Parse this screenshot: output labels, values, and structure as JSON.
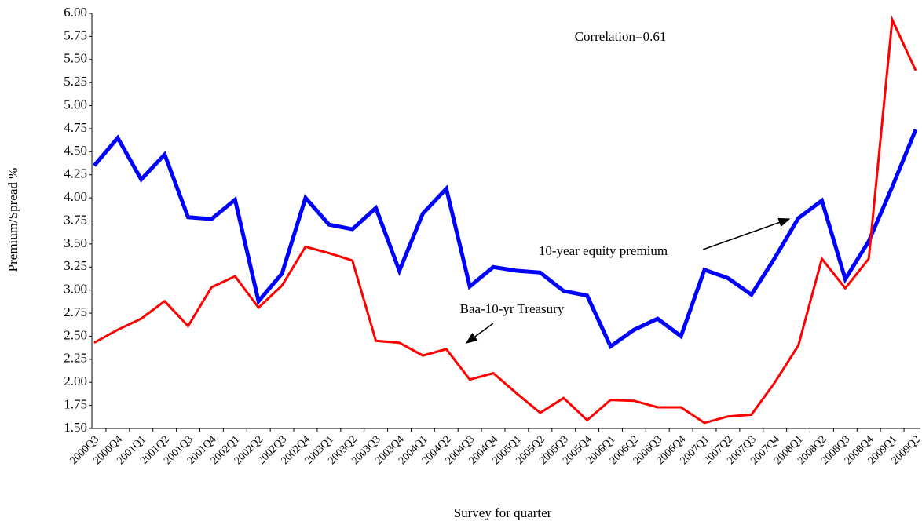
{
  "chart_data": {
    "type": "line",
    "annotation": "Correlation=0.61",
    "y_label": "Premium/Spread %",
    "x_label": "Survey for quarter",
    "categories": [
      "2000Q3",
      "2000Q4",
      "2001Q1",
      "2001Q2",
      "2001Q3",
      "2001Q4",
      "2002Q1",
      "2002Q2",
      "2002Q3",
      "2002Q4",
      "2003Q1",
      "2003Q2",
      "2003Q3",
      "2003Q4",
      "2004Q1",
      "2004Q2",
      "2004Q3",
      "2004Q4",
      "2005Q1",
      "2005Q2",
      "2005Q3",
      "2005Q4",
      "2006Q1",
      "2006Q2",
      "2006Q3",
      "2006Q4",
      "2007Q1",
      "2007Q2",
      "2007Q3",
      "2007Q4",
      "2008Q1",
      "2008Q2",
      "2008Q3",
      "2008Q4",
      "2009Q1",
      "2009Q2"
    ],
    "series": [
      {
        "name": "10-year equity premium",
        "color": "#0000ff",
        "values": [
          4.35,
          4.65,
          4.2,
          4.47,
          3.79,
          3.77,
          3.98,
          2.88,
          3.18,
          4.0,
          3.71,
          3.66,
          3.89,
          3.21,
          3.83,
          4.1,
          3.04,
          3.25,
          3.21,
          3.19,
          2.99,
          2.94,
          2.39,
          2.57,
          2.69,
          2.5,
          3.22,
          3.13,
          2.95,
          3.35,
          3.78,
          3.97,
          3.12,
          3.53,
          4.12,
          4.74
        ]
      },
      {
        "name": "Baa-10-yr Treasury",
        "color": "#ff0000",
        "values": [
          2.43,
          2.57,
          2.69,
          2.88,
          2.61,
          3.03,
          3.15,
          2.81,
          3.05,
          3.47,
          3.4,
          3.32,
          2.45,
          2.43,
          2.29,
          2.36,
          2.03,
          2.1,
          1.88,
          1.67,
          1.83,
          1.59,
          1.81,
          1.8,
          1.73,
          1.73,
          1.56,
          1.63,
          1.65,
          2.0,
          2.4,
          3.34,
          3.02,
          3.34,
          5.93,
          5.38
        ]
      }
    ],
    "ylim": [
      1.5,
      6.0
    ],
    "yticks": [
      {
        "value": 1.5,
        "label": "1.50"
      },
      {
        "value": 1.75,
        "label": "1.75"
      },
      {
        "value": 2,
        "label": "2.00"
      },
      {
        "value": 2.25,
        "label": "2.25"
      },
      {
        "value": 2.5,
        "label": "2.50"
      },
      {
        "value": 2.75,
        "label": "2.75"
      },
      {
        "value": 3,
        "label": "3.00"
      },
      {
        "value": 3.25,
        "label": "3.25"
      },
      {
        "value": 3.5,
        "label": "3.50"
      },
      {
        "value": 3.75,
        "label": "3.75"
      },
      {
        "value": 4,
        "label": "4.00"
      },
      {
        "value": 4.25,
        "label": "4.25"
      },
      {
        "value": 4.5,
        "label": "4.50"
      },
      {
        "value": 4.75,
        "label": "4.75"
      },
      {
        "value": 5,
        "label": "5.00"
      },
      {
        "value": 5.25,
        "label": "5.25"
      },
      {
        "value": 5.5,
        "label": "5.50"
      },
      {
        "value": 5.75,
        "label": "5.75"
      },
      {
        "value": 6,
        "label": "6.00"
      }
    ]
  }
}
